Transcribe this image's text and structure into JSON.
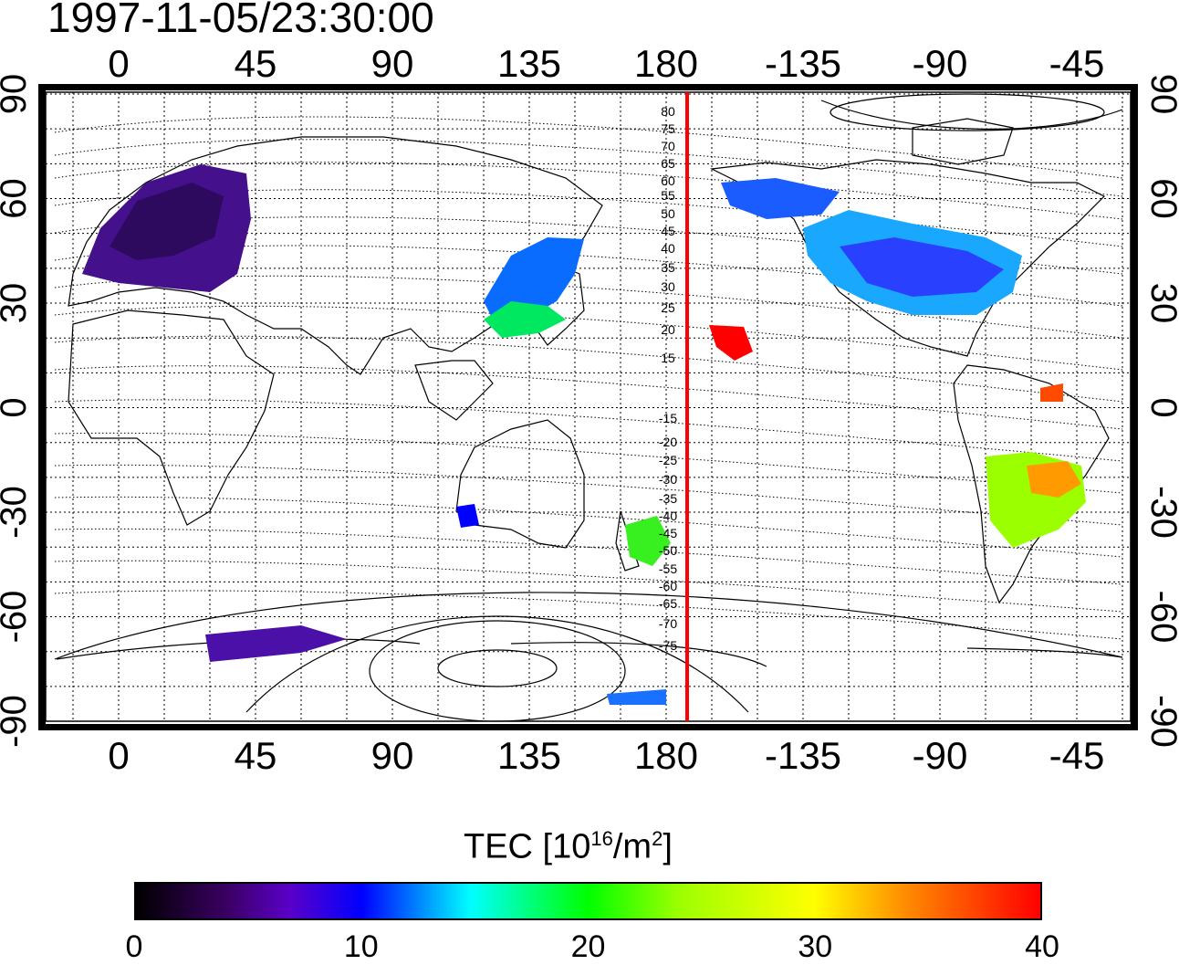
{
  "timestamp": "1997-11-05/23:30:00",
  "top_lon_ticks": [
    "0",
    "45",
    "90",
    "135",
    "180",
    "-135",
    "-90",
    "-45"
  ],
  "bottom_lon_ticks": [
    "0",
    "45",
    "90",
    "135",
    "180",
    "-135",
    "-90",
    "-45"
  ],
  "lat_ticks": [
    "90",
    "60",
    "30",
    "0",
    "-30",
    "-60",
    "-90"
  ],
  "mlat_labels": [
    "80",
    "75",
    "70",
    "65",
    "60",
    "55",
    "50",
    "45",
    "40",
    "35",
    "30",
    "25",
    "20",
    "15",
    "-15",
    "-20",
    "-25",
    "-30",
    "-35",
    "-40",
    "-45",
    "-50",
    "-55",
    "-60",
    "-65",
    "-70",
    "-75"
  ],
  "colorbar": {
    "label_prefix": "TEC  [10",
    "label_exp": "16",
    "label_mid": "/m",
    "label_exp2": "2",
    "label_suffix": "]",
    "ticks": [
      "0",
      "10",
      "20",
      "30",
      "40"
    ],
    "min": 0,
    "max": 40
  },
  "colors": {
    "meridian_line": "#ff0000",
    "grid": "#000000"
  }
}
